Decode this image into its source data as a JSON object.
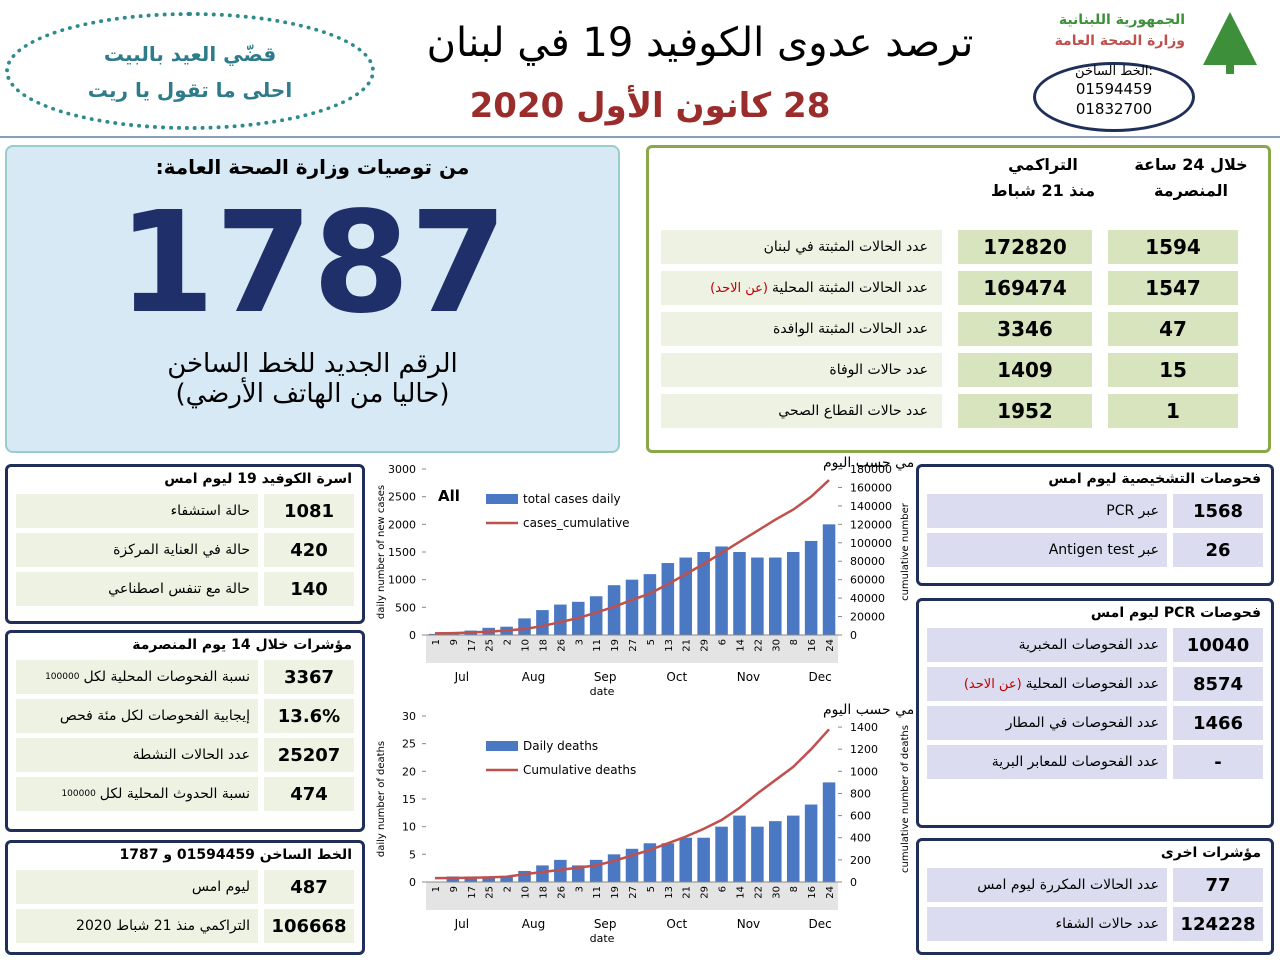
{
  "header": {
    "ministry_line1": "الجمهورية اللبنانية",
    "ministry_line2": "وزارة الصحة العامة",
    "hotline_label": "الخط الساخن:",
    "hotline_numbers": [
      "01594459",
      "01832700"
    ],
    "title": "ترصد عدوى الكوفيد 19 في لبنان",
    "date": "28 كانون الأول 2020",
    "slogan": [
      "قضّي العيد بالبيت",
      "احلى ما تقول يا ريت"
    ]
  },
  "hotline_box": {
    "heading": "من توصيات وزارة الصحة العامة:",
    "number": 1787,
    "caption": [
      "الرقم الجديد للخط الساخن",
      "(حاليا من الهاتف الأرضي)"
    ]
  },
  "summary": {
    "daily_header": [
      "خلال 24 ساعة",
      "المنصرمة"
    ],
    "cumulative_header": [
      "التراكمي",
      "منذ 21 شباط"
    ],
    "rows": [
      {
        "label": "عدد الحالات المثبتة في لبنان",
        "cumulative": 172820,
        "daily": 1594
      },
      {
        "label": "عدد الحالات المثبتة المحلية",
        "note": "(عن الاحد)",
        "cumulative": 169474,
        "daily": 1547
      },
      {
        "label": "عدد الحالات المثبتة الوافدة",
        "cumulative": 3346,
        "daily": 47
      },
      {
        "label": "عدد حالات الوفاة",
        "cumulative": 1409,
        "daily": 15
      },
      {
        "label": "عدد حالات القطاع الصحي",
        "cumulative": 1952,
        "daily": 1
      }
    ]
  },
  "family": {
    "title": "اسرة الكوفيد 19 ليوم امس",
    "rows": [
      {
        "label": "حالة استشفاء",
        "value": 1081
      },
      {
        "label": "حالة في العناية المركزة",
        "value": 420
      },
      {
        "label": "حالة مع تنفس اصطناعي",
        "value": 140
      }
    ]
  },
  "indicators": {
    "title": "مؤشرات خلال 14 يوم المنصرمة",
    "rows": [
      {
        "label": "نسبة الفحوصات المحلية لكل",
        "note": "100000",
        "value": 3367
      },
      {
        "label": "إيجابية الفحوصات لكل مئة فحص",
        "value": "13.6%"
      },
      {
        "label": "عدد الحالات النشطة",
        "value": 25207
      },
      {
        "label": "نسبة الحدوث المحلية لكل",
        "note": "100000",
        "value": 474
      }
    ]
  },
  "hotline_stats": {
    "title": "الخط الساخن 01594459 و 1787",
    "rows": [
      {
        "label": "ليوم امس",
        "value": 487
      },
      {
        "label": "التراكمي منذ 21 شباط 2020",
        "value": 106668
      }
    ]
  },
  "diagnostic": {
    "title": "فحوصات التشخيصية ليوم امس",
    "rows": [
      {
        "label": "عبر PCR",
        "value": 1568
      },
      {
        "label": "عبر Antigen test",
        "value": 26
      }
    ]
  },
  "pcr": {
    "title": "فحوصات PCR ليوم امس",
    "rows": [
      {
        "label": "عدد الفحوصات المخبرية",
        "value": 10040
      },
      {
        "label": "عدد الفحوصات المحلية",
        "note": "(عن الاحد)",
        "value": 8574
      },
      {
        "label": "عدد الفحوصات في المطار",
        "value": 1466
      },
      {
        "label": "عدد الفحوصات للمعابر البرية",
        "value": "-"
      }
    ]
  },
  "other": {
    "title": "مؤشرات اخرى",
    "rows": [
      {
        "label": "عدد الحالات المكررة ليوم امس",
        "value": 77
      },
      {
        "label": "عدد حالات الشفاء",
        "value": 124228
      }
    ]
  },
  "chart_data": [
    {
      "type": "combo",
      "title": "توزيع عدد الحالات الجديدة اليومي والتراكمي حسب اليوم",
      "tag": "All",
      "categories": [
        "1",
        "9",
        "17",
        "25",
        "2",
        "10",
        "18",
        "26",
        "3",
        "11",
        "19",
        "27",
        "5",
        "13",
        "21",
        "29",
        "6",
        "14",
        "22",
        "30",
        "8",
        "16",
        "24"
      ],
      "month_labels": [
        "Jul",
        "Aug",
        "Sep",
        "Oct",
        "Nov",
        "Dec"
      ],
      "xlabel": "date",
      "ylabel": "daily number of new cases",
      "y2label": "cumulative number",
      "ylim": [
        0,
        3000
      ],
      "yticks": [
        0,
        500,
        1000,
        1500,
        2000,
        2500,
        3000
      ],
      "y2lim": [
        0,
        180000
      ],
      "y2ticks": [
        0,
        20000,
        40000,
        60000,
        80000,
        100000,
        120000,
        140000,
        160000,
        180000
      ],
      "series": [
        {
          "name": "total cases daily",
          "color": "#4a78c2",
          "values": [
            20,
            50,
            80,
            130,
            150,
            300,
            450,
            550,
            600,
            700,
            900,
            1000,
            1100,
            1300,
            1400,
            1500,
            1600,
            1500,
            1400,
            1400,
            1500,
            1700,
            2000
          ]
        },
        {
          "name": "cases_cumulative",
          "color": "#c0504d",
          "axis": "y2",
          "values": [
            1800,
            2100,
            2700,
            3600,
            4900,
            6500,
            9700,
            14000,
            18400,
            24300,
            30600,
            38000,
            45000,
            55000,
            66000,
            77000,
            89000,
            101000,
            113000,
            125000,
            136000,
            150000,
            168000
          ]
        }
      ]
    },
    {
      "type": "combo",
      "title": "توزيع عدد حالات الوفاة اليومي والتراكمي حسب اليوم",
      "categories": [
        "1",
        "9",
        "17",
        "25",
        "2",
        "10",
        "18",
        "26",
        "3",
        "11",
        "19",
        "27",
        "5",
        "13",
        "21",
        "29",
        "6",
        "14",
        "22",
        "30",
        "8",
        "16",
        "24"
      ],
      "month_labels": [
        "Jul",
        "Aug",
        "Sep",
        "Oct",
        "Nov",
        "Dec"
      ],
      "xlabel": "date",
      "ylabel": "daily number of deaths",
      "y2label": "cumulative number of deaths",
      "ylim": [
        0,
        30
      ],
      "yticks": [
        0,
        5,
        10,
        15,
        20,
        25,
        30
      ],
      "y2lim": [
        0,
        1500
      ],
      "y2ticks": [
        0,
        200,
        400,
        600,
        800,
        1000,
        1200,
        1400
      ],
      "series": [
        {
          "name": "Daily deaths",
          "color": "#4a78c2",
          "values": [
            0,
            1,
            1,
            1,
            1,
            2,
            3,
            4,
            3,
            4,
            5,
            6,
            7,
            7,
            8,
            8,
            10,
            12,
            10,
            11,
            12,
            14,
            18
          ]
        },
        {
          "name": "Cumulative deaths",
          "color": "#c0504d",
          "axis": "y2",
          "values": [
            35,
            36,
            38,
            42,
            48,
            70,
            90,
            110,
            130,
            150,
            190,
            240,
            290,
            350,
            410,
            480,
            560,
            670,
            800,
            920,
            1040,
            1200,
            1380
          ]
        }
      ]
    }
  ]
}
